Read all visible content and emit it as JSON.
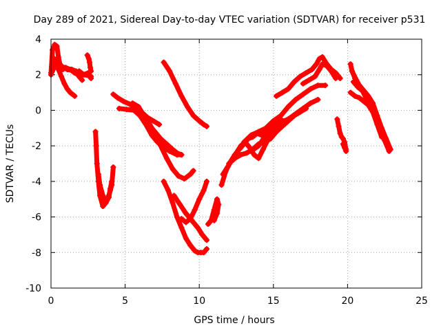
{
  "chart_data": {
    "type": "scatter",
    "title": "Day 289 of 2021, Sidereal Day-to-day VTEC variation (SDTVAR) for receiver p531",
    "xlabel": "GPS time / hours",
    "ylabel": "SDTVAR / TECUs",
    "xlim": [
      0,
      25
    ],
    "ylim": [
      -10,
      4
    ],
    "xticks": [
      "0",
      "5",
      "10",
      "15",
      "20",
      "25"
    ],
    "yticks": [
      "-10",
      "-8",
      "-6",
      "-4",
      "-2",
      "0",
      "2",
      "4"
    ],
    "grid": true,
    "marker": "plus",
    "color": "#ff0000",
    "series": [
      {
        "x": [
          0.0,
          0.1,
          0.25,
          0.4,
          0.5,
          0.6,
          0.8,
          1.1,
          1.4,
          1.7,
          2.0,
          2.3,
          2.7
        ],
        "y": [
          2.1,
          3.4,
          3.7,
          3.6,
          3.0,
          2.6,
          2.4,
          2.3,
          2.3,
          2.2,
          2.1,
          2.0,
          1.9
        ]
      },
      {
        "x": [
          0.0,
          0.2,
          0.4,
          0.6,
          0.8,
          1.0,
          1.3,
          1.6,
          1.9,
          2.2,
          2.5,
          2.7
        ],
        "y": [
          2.0,
          2.4,
          2.6,
          2.5,
          2.3,
          2.4,
          2.3,
          2.1,
          2.2,
          2.0,
          2.1,
          1.8
        ]
      },
      {
        "x": [
          0.3,
          0.5,
          0.7,
          0.9,
          1.1,
          1.3,
          1.6
        ],
        "y": [
          2.7,
          2.3,
          1.9,
          1.5,
          1.2,
          1.0,
          0.8
        ]
      },
      {
        "x": [
          0.1,
          0.3,
          0.6,
          0.9,
          1.2,
          1.5,
          1.8,
          2.1
        ],
        "y": [
          3.0,
          2.8,
          2.5,
          2.4,
          2.3,
          2.2,
          2.0,
          1.7
        ]
      },
      {
        "x": [
          2.45,
          2.55,
          2.6,
          2.65,
          2.7
        ],
        "y": [
          3.1,
          2.9,
          2.7,
          2.4,
          2.2
        ]
      },
      {
        "x": [
          3.0,
          3.05,
          3.1,
          3.2,
          3.3,
          3.5,
          3.7,
          3.9,
          4.0,
          4.1,
          4.2
        ],
        "y": [
          -1.2,
          -2.0,
          -3.0,
          -4.0,
          -4.8,
          -5.4,
          -5.2,
          -4.8,
          -4.5,
          -4.2,
          -3.2
        ]
      },
      {
        "x": [
          3.2,
          3.3,
          3.5,
          3.7,
          3.9,
          4.0,
          4.1
        ],
        "y": [
          -3.6,
          -4.2,
          -4.8,
          -5.2,
          -4.9,
          -4.4,
          -4.0
        ]
      },
      {
        "x": [
          4.2,
          4.5,
          4.9,
          5.3,
          5.7,
          6.1,
          6.5,
          6.9,
          7.3
        ],
        "y": [
          0.9,
          0.7,
          0.5,
          0.35,
          0.15,
          -0.1,
          -0.4,
          -0.6,
          -0.8
        ]
      },
      {
        "x": [
          4.6,
          5.1,
          5.6,
          6.0,
          6.4,
          6.8,
          7.2,
          7.6,
          8.0,
          8.5,
          8.8
        ],
        "y": [
          0.1,
          0.05,
          0.0,
          -0.3,
          -0.8,
          -1.4,
          -1.8,
          -2.1,
          -2.3,
          -2.5,
          -2.5
        ]
      },
      {
        "x": [
          5.5,
          5.9,
          6.2,
          6.6,
          7.0,
          7.4,
          7.8,
          8.2,
          8.6,
          9.0,
          9.4,
          9.6
        ],
        "y": [
          0.4,
          0.2,
          -0.2,
          -0.7,
          -1.3,
          -2.0,
          -2.7,
          -3.3,
          -3.7,
          -3.85,
          -3.6,
          -3.4
        ]
      },
      {
        "x": [
          6.2,
          6.6,
          7.0,
          7.4,
          7.8,
          8.2,
          8.5,
          8.8
        ],
        "y": [
          -0.4,
          -0.8,
          -1.2,
          -1.6,
          -1.9,
          -2.2,
          -2.4,
          -2.5
        ]
      },
      {
        "x": [
          7.6,
          8.0,
          8.4,
          8.8,
          9.2,
          9.6,
          10.0,
          10.3,
          10.5
        ],
        "y": [
          2.7,
          2.2,
          1.5,
          0.8,
          0.2,
          -0.3,
          -0.6,
          -0.8,
          -0.9
        ]
      },
      {
        "x": [
          7.6,
          7.9,
          8.2,
          8.5,
          8.8,
          9.1,
          9.4,
          9.7,
          9.9,
          10.1,
          10.3,
          10.5
        ],
        "y": [
          -4.0,
          -4.5,
          -5.2,
          -6.0,
          -6.6,
          -7.2,
          -7.6,
          -7.9,
          -8.0,
          -8.0,
          -8.0,
          -7.8
        ]
      },
      {
        "x": [
          8.3,
          8.7,
          9.1,
          9.5,
          9.9,
          10.2,
          10.5
        ],
        "y": [
          -4.8,
          -5.3,
          -5.8,
          -6.2,
          -6.6,
          -7.0,
          -7.3
        ]
      },
      {
        "x": [
          8.8,
          9.1,
          9.4,
          9.7,
          10.0,
          10.3,
          10.5
        ],
        "y": [
          -6.1,
          -6.3,
          -6.1,
          -5.6,
          -5.0,
          -4.5,
          -4.0
        ]
      },
      {
        "x": [
          10.6,
          10.8,
          11.0,
          11.2,
          11.3,
          11.2,
          11.0
        ],
        "y": [
          -6.4,
          -6.2,
          -5.6,
          -5.0,
          -5.3,
          -5.8,
          -6.2
        ]
      },
      {
        "x": [
          11.5,
          11.8,
          12.1,
          12.4,
          12.7,
          13.0,
          13.3,
          13.6,
          13.9,
          14.2,
          14.5,
          14.8,
          15.1,
          15.4,
          15.7,
          16.0
        ],
        "y": [
          -4.2,
          -3.4,
          -2.9,
          -2.5,
          -2.2,
          -1.9,
          -1.6,
          -1.5,
          -1.3,
          -1.4,
          -1.2,
          -1.0,
          -0.9,
          -0.8,
          -0.6,
          -0.5
        ]
      },
      {
        "x": [
          11.6,
          11.9,
          12.2,
          12.5,
          12.8,
          13.1,
          13.4,
          13.7,
          14.0,
          14.3,
          14.6,
          14.9,
          15.2,
          15.5
        ],
        "y": [
          -3.6,
          -3.2,
          -2.8,
          -2.4,
          -2.0,
          -1.8,
          -2.1,
          -2.5,
          -2.7,
          -2.2,
          -1.7,
          -1.2,
          -0.8,
          -0.5
        ]
      },
      {
        "x": [
          12.0,
          12.4,
          12.8,
          13.2,
          13.6,
          14.0,
          14.4,
          14.8,
          15.2,
          15.6,
          16.0,
          16.4,
          16.8,
          17.2
        ],
        "y": [
          -3.0,
          -2.7,
          -2.5,
          -2.4,
          -2.2,
          -1.9,
          -1.8,
          -1.6,
          -1.2,
          -0.9,
          -0.6,
          -0.3,
          -0.1,
          0.1
        ]
      },
      {
        "x": [
          13.0,
          13.5,
          14.0,
          14.5,
          15.0,
          15.5,
          16.0,
          16.5,
          17.0,
          17.5,
          18.0,
          18.5
        ],
        "y": [
          -1.8,
          -1.4,
          -1.2,
          -1.0,
          -0.6,
          -0.3,
          0.2,
          0.6,
          0.9,
          1.2,
          1.4,
          1.4
        ]
      },
      {
        "x": [
          13.5,
          14.0,
          14.5,
          15.0,
          15.5,
          16.0,
          16.5,
          17.0,
          17.5,
          18.0
        ],
        "y": [
          -2.3,
          -2.0,
          -1.4,
          -0.9,
          -0.8,
          -0.5,
          -0.2,
          0.1,
          0.4,
          0.6
        ]
      },
      {
        "x": [
          15.2,
          15.6,
          16.0,
          16.4,
          16.8,
          17.2,
          17.6,
          17.9,
          18.1,
          18.3,
          18.6,
          18.9,
          19.2,
          19.5
        ],
        "y": [
          0.8,
          1.0,
          1.2,
          1.6,
          1.9,
          2.1,
          2.3,
          2.6,
          2.9,
          3.0,
          2.6,
          2.3,
          2.1,
          1.8
        ]
      },
      {
        "x": [
          17.0,
          17.4,
          17.8,
          18.1,
          18.3,
          18.6,
          18.9,
          19.2
        ],
        "y": [
          1.5,
          1.7,
          1.9,
          2.3,
          2.6,
          2.5,
          2.2,
          1.8
        ]
      },
      {
        "x": [
          19.3,
          19.4,
          19.5,
          19.6,
          19.7,
          19.8,
          19.9
        ],
        "y": [
          -0.5,
          -0.9,
          -1.3,
          -1.5,
          -1.6,
          -1.8,
          -2.2
        ]
      },
      {
        "x": [
          19.7,
          19.8,
          19.9
        ],
        "y": [
          -1.9,
          -2.1,
          -2.3
        ]
      },
      {
        "x": [
          20.2,
          20.3,
          20.5,
          20.8,
          21.1,
          21.4,
          21.7,
          22.0,
          22.3,
          22.6,
          22.9
        ],
        "y": [
          2.6,
          2.2,
          1.8,
          1.4,
          1.1,
          0.8,
          0.4,
          -0.3,
          -1.0,
          -1.6,
          -2.2
        ]
      },
      {
        "x": [
          20.3,
          20.6,
          20.9,
          21.2,
          21.5,
          21.8,
          22.1,
          22.4,
          22.7
        ],
        "y": [
          2.2,
          1.7,
          1.2,
          0.9,
          0.5,
          0.0,
          -0.6,
          -1.3,
          -2.0
        ]
      },
      {
        "x": [
          20.2,
          20.5,
          20.8,
          21.1,
          21.4,
          21.7,
          22.0,
          22.3
        ],
        "y": [
          1.0,
          0.8,
          0.7,
          0.5,
          0.3,
          -0.1,
          -0.8,
          -1.5
        ]
      },
      {
        "x": [
          20.4,
          20.7,
          21.0,
          21.3,
          21.6,
          21.9,
          22.2,
          22.5,
          22.8
        ],
        "y": [
          1.6,
          1.3,
          1.1,
          0.6,
          0.3,
          -0.4,
          -1.0,
          -1.7,
          -2.3
        ]
      }
    ]
  }
}
